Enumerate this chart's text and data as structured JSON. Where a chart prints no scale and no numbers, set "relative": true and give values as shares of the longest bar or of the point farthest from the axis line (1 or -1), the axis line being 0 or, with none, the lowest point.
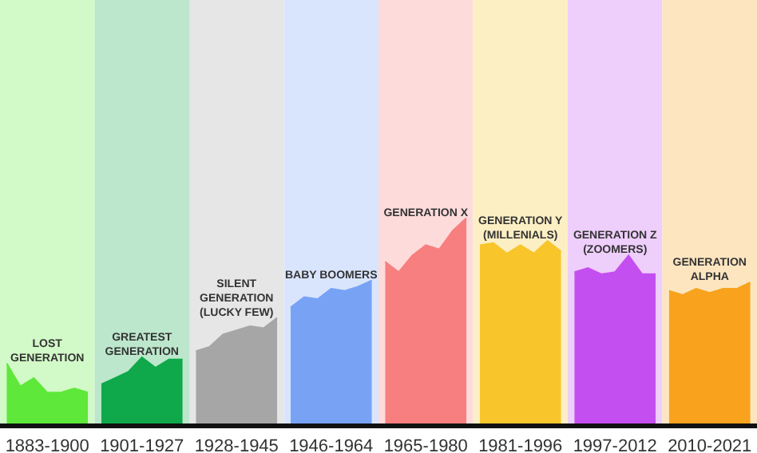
{
  "chart_data": {
    "type": "area",
    "relative": true,
    "categories": [
      null,
      null,
      null,
      "1883-1900",
      null,
      null,
      null,
      null,
      null,
      null,
      "1901-1927",
      null,
      null,
      null,
      null,
      null,
      null,
      "1928-1945",
      null,
      null,
      null,
      null,
      null,
      null,
      "1946-1964",
      null,
      null,
      null,
      null,
      null,
      null,
      "1965-1980",
      null,
      null,
      null,
      null,
      null,
      null,
      "1981-1996",
      null,
      null,
      null,
      null,
      null,
      null,
      "1997-2012",
      null,
      null,
      null,
      null,
      null,
      null,
      "2010-2021",
      null,
      null,
      null
    ],
    "series": [
      {
        "name": "LOST GENERATION",
        "color": "#5ee83a",
        "values": [
          0.3,
          0.19,
          0.23,
          0.16,
          0.16,
          0.18,
          0.16,
          null,
          null,
          null,
          null,
          null,
          null,
          null,
          null,
          null,
          null,
          null,
          null,
          null,
          null,
          null,
          null,
          null,
          null,
          null,
          null,
          null,
          null,
          null,
          null,
          null,
          null,
          null,
          null,
          null,
          null,
          null,
          null,
          null,
          null,
          null,
          null,
          null,
          null,
          null,
          null,
          null,
          null,
          null,
          null,
          null,
          null,
          null,
          null,
          null
        ]
      },
      {
        "name": "GREATEST GENERATION",
        "color": "#0fa84a",
        "values": [
          null,
          null,
          null,
          null,
          null,
          null,
          null,
          0.2,
          0.23,
          0.26,
          0.33,
          0.28,
          0.32,
          0.32,
          null,
          null,
          null,
          null,
          null,
          null,
          null,
          null,
          null,
          null,
          null,
          null,
          null,
          null,
          null,
          null,
          null,
          null,
          null,
          null,
          null,
          null,
          null,
          null,
          null,
          null,
          null,
          null,
          null,
          null,
          null,
          null,
          null,
          null,
          null,
          null,
          null,
          null,
          null,
          null,
          null,
          null
        ]
      },
      {
        "name": "SILENT GENERATION (LUCKY FEW)",
        "color": "#a6a6a6",
        "values": [
          null,
          null,
          null,
          null,
          null,
          null,
          null,
          null,
          null,
          null,
          null,
          null,
          null,
          null,
          0.36,
          0.38,
          0.44,
          0.46,
          0.48,
          0.47,
          0.52,
          null,
          null,
          null,
          null,
          null,
          null,
          null,
          null,
          null,
          null,
          null,
          null,
          null,
          null,
          null,
          null,
          null,
          null,
          null,
          null,
          null,
          null,
          null,
          null,
          null,
          null,
          null,
          null,
          null,
          null,
          null,
          null,
          null,
          null,
          null
        ]
      },
      {
        "name": "BABY BOOMERS",
        "color": "#78a3f5",
        "values": [
          null,
          null,
          null,
          null,
          null,
          null,
          null,
          null,
          null,
          null,
          null,
          null,
          null,
          null,
          null,
          null,
          null,
          null,
          null,
          null,
          null,
          0.57,
          0.62,
          0.61,
          0.66,
          0.65,
          0.67,
          0.7,
          null,
          null,
          null,
          null,
          null,
          null,
          null,
          null,
          null,
          null,
          null,
          null,
          null,
          null,
          null,
          null,
          null,
          null,
          null,
          null,
          null,
          null,
          null,
          null,
          null,
          null,
          null,
          null
        ]
      },
      {
        "name": "GENERATION X",
        "color": "#f77f7f",
        "values": [
          null,
          null,
          null,
          null,
          null,
          null,
          null,
          null,
          null,
          null,
          null,
          null,
          null,
          null,
          null,
          null,
          null,
          null,
          null,
          null,
          null,
          null,
          null,
          null,
          null,
          null,
          null,
          null,
          0.79,
          0.74,
          0.82,
          0.87,
          0.85,
          0.94,
          1.0,
          null,
          null,
          null,
          null,
          null,
          null,
          null,
          null,
          null,
          null,
          null,
          null,
          null,
          null,
          null,
          null,
          null,
          null,
          null,
          null,
          null
        ]
      },
      {
        "name": "GENERATION Y (MILLENIALS)",
        "color": "#f8c62b",
        "values": [
          null,
          null,
          null,
          null,
          null,
          null,
          null,
          null,
          null,
          null,
          null,
          null,
          null,
          null,
          null,
          null,
          null,
          null,
          null,
          null,
          null,
          null,
          null,
          null,
          null,
          null,
          null,
          null,
          null,
          null,
          null,
          null,
          null,
          null,
          null,
          0.87,
          0.88,
          0.83,
          0.87,
          0.83,
          0.89,
          0.84,
          null,
          null,
          null,
          null,
          null,
          null,
          null,
          null,
          null,
          null,
          null,
          null,
          null,
          null
        ]
      },
      {
        "name": "GENERATION Z (ZOOMERS)",
        "color": "#c44ff0",
        "values": [
          null,
          null,
          null,
          null,
          null,
          null,
          null,
          null,
          null,
          null,
          null,
          null,
          null,
          null,
          null,
          null,
          null,
          null,
          null,
          null,
          null,
          null,
          null,
          null,
          null,
          null,
          null,
          null,
          null,
          null,
          null,
          null,
          null,
          null,
          null,
          null,
          null,
          null,
          null,
          null,
          null,
          null,
          0.74,
          0.76,
          0.73,
          0.74,
          0.82,
          0.73,
          0.73,
          null,
          null,
          null,
          null,
          null,
          null,
          null
        ]
      },
      {
        "name": "GENERATION ALPHA",
        "color": "#f8a21e",
        "values": [
          null,
          null,
          null,
          null,
          null,
          null,
          null,
          null,
          null,
          null,
          null,
          null,
          null,
          null,
          null,
          null,
          null,
          null,
          null,
          null,
          null,
          null,
          null,
          null,
          null,
          null,
          null,
          null,
          null,
          null,
          null,
          null,
          null,
          null,
          null,
          null,
          null,
          null,
          null,
          null,
          null,
          null,
          null,
          null,
          null,
          null,
          null,
          null,
          null,
          0.65,
          0.63,
          0.66,
          0.64,
          0.66,
          0.66,
          0.69
        ]
      }
    ]
  }
}
